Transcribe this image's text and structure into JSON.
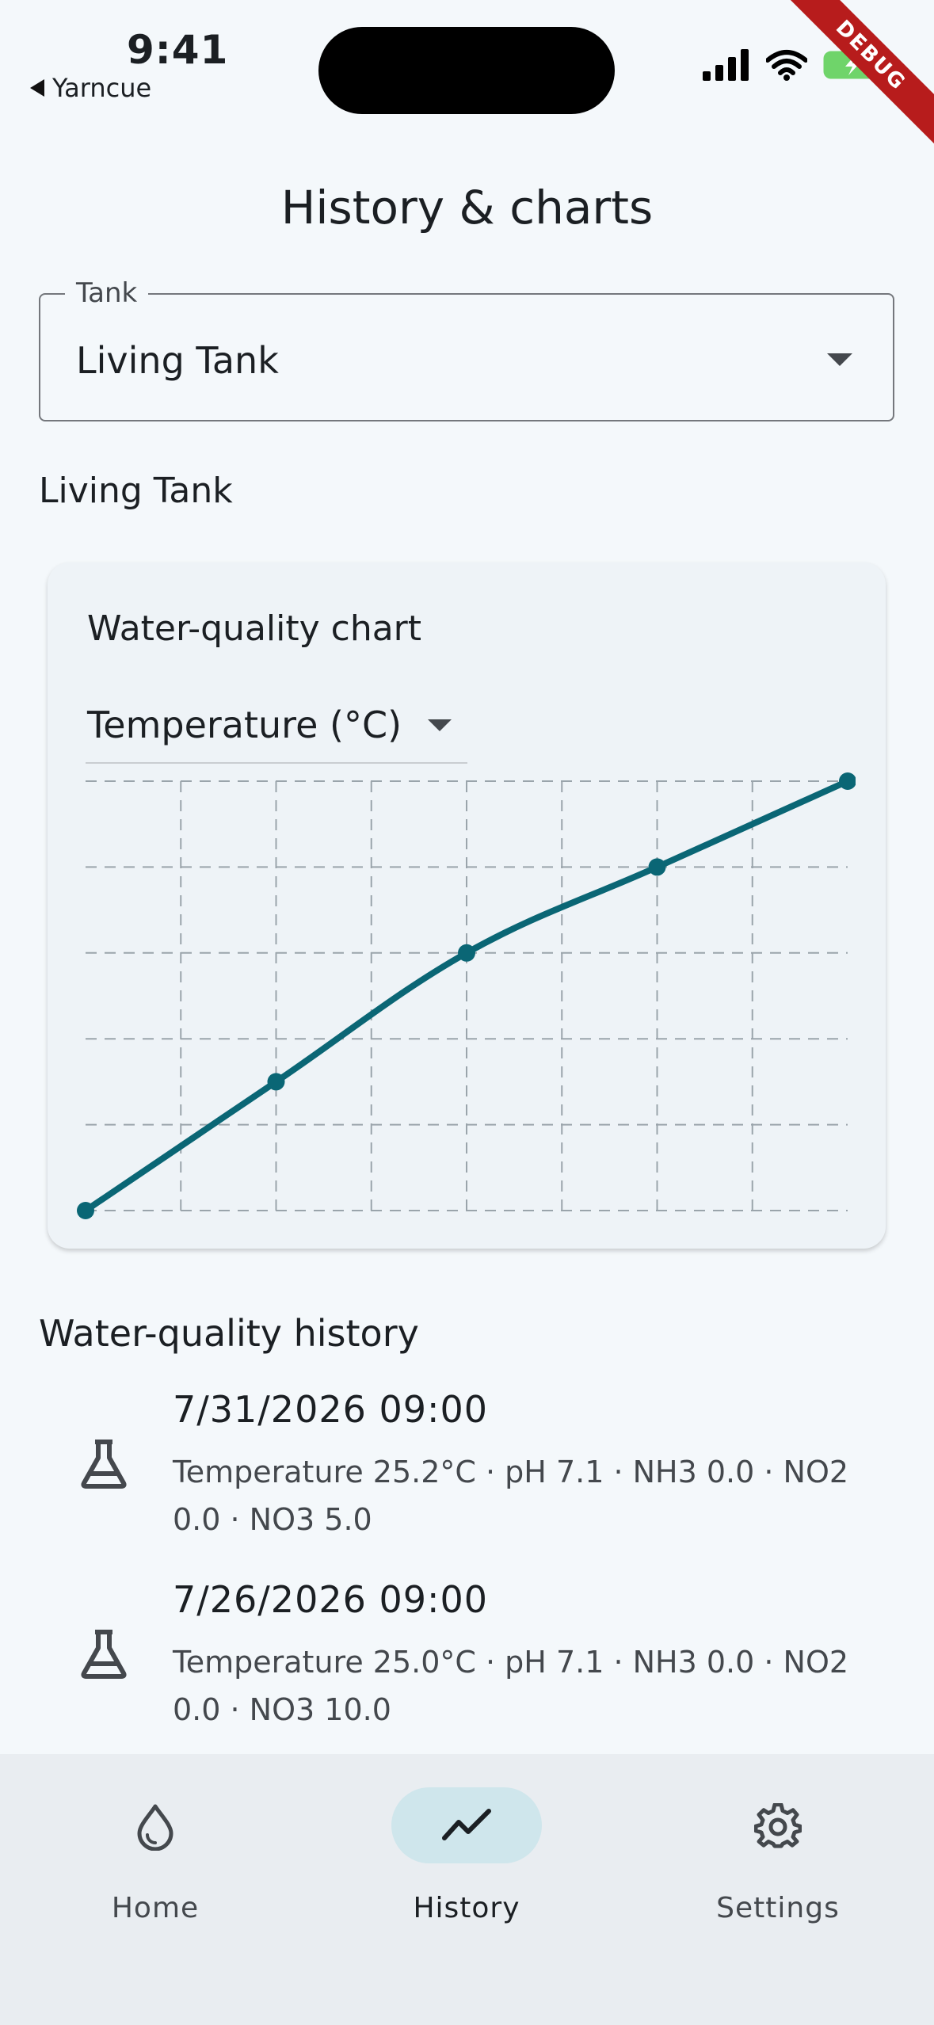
{
  "status_bar": {
    "time": "9:41",
    "back_app": "Yarncue",
    "debug_label": "DEBUG"
  },
  "page": {
    "title": "History & charts"
  },
  "tank_selector": {
    "legend": "Tank",
    "value": "Living Tank"
  },
  "section": {
    "tank_name": "Living Tank"
  },
  "chart_card": {
    "title": "Water-quality chart",
    "metric": "Temperature (°C)"
  },
  "chart_data": {
    "type": "line",
    "title": "",
    "xlabel": "",
    "ylabel": "",
    "grid": true,
    "series": [
      {
        "values": [
          0,
          0.3,
          0.6,
          0.8,
          1.0
        ]
      }
    ],
    "x": [
      0,
      0.25,
      0.5,
      0.75,
      1.0
    ],
    "ylim": [
      0,
      1
    ],
    "xlim": [
      0,
      1
    ],
    "colors": {
      "line": "#0a6675",
      "grid": "#9aa4ab"
    }
  },
  "history": {
    "title": "Water-quality history",
    "entries": [
      {
        "date": "7/31/2026 09:00",
        "summary": "Temperature 25.2°C · pH 7.1 · NH3 0.0 · NO2 0.0 · NO3 5.0"
      },
      {
        "date": "7/26/2026 09:00",
        "summary": "Temperature 25.0°C · pH 7.1 · NH3 0.0 · NO2 0.0 · NO3 10.0"
      }
    ]
  },
  "bottom_nav": {
    "items": [
      {
        "label": "Home",
        "icon": "water-drop-icon"
      },
      {
        "label": "History",
        "icon": "trend-line-icon",
        "active": true
      },
      {
        "label": "Settings",
        "icon": "gear-icon"
      }
    ]
  }
}
